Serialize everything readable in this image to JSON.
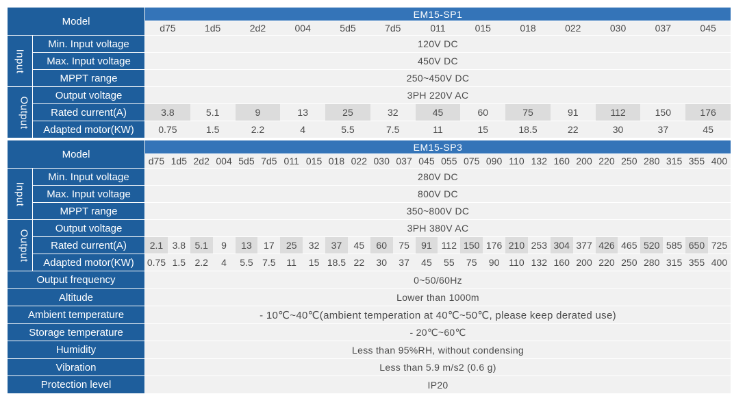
{
  "labels": {
    "model": "Model",
    "input_side": "Input",
    "output_side": "Output",
    "min_input_voltage": "Min. Input voltage",
    "max_input_voltage": "Max. Input voltage",
    "mppt_range": "MPPT range",
    "output_voltage": "Output voltage",
    "rated_current": "Rated current(A)",
    "adapted_motor": "Adapted motor(KW)"
  },
  "sp1": {
    "name": "EM15-SP1",
    "models": [
      "d75",
      "1d5",
      "2d2",
      "004",
      "5d5",
      "7d5",
      "011",
      "015",
      "018",
      "022",
      "030",
      "037",
      "045"
    ],
    "min_input_voltage": "120V DC",
    "max_input_voltage": "450V DC",
    "mppt_range": "250~450V DC",
    "output_voltage": "3PH 220V AC",
    "rated_current": [
      "3.8",
      "5.1",
      "9",
      "13",
      "25",
      "32",
      "45",
      "60",
      "75",
      "91",
      "112",
      "150",
      "176"
    ],
    "adapted_motor": [
      "0.75",
      "1.5",
      "2.2",
      "4",
      "5.5",
      "7.5",
      "11",
      "15",
      "18.5",
      "22",
      "30",
      "37",
      "45"
    ]
  },
  "sp3": {
    "name": "EM15-SP3",
    "models": [
      "d75",
      "1d5",
      "2d2",
      "004",
      "5d5",
      "7d5",
      "011",
      "015",
      "018",
      "022",
      "030",
      "037",
      "045",
      "055",
      "075",
      "090",
      "110",
      "132",
      "160",
      "200",
      "220",
      "250",
      "280",
      "315",
      "355",
      "400"
    ],
    "min_input_voltage": "280V DC",
    "max_input_voltage": "800V DC",
    "mppt_range": "350~800V DC",
    "output_voltage": "3PH 380V AC",
    "rated_current": [
      "2.1",
      "3.8",
      "5.1",
      "9",
      "13",
      "17",
      "25",
      "32",
      "37",
      "45",
      "60",
      "75",
      "91",
      "112",
      "150",
      "176",
      "210",
      "253",
      "304",
      "377",
      "426",
      "465",
      "520",
      "585",
      "650",
      "725"
    ],
    "adapted_motor": [
      "0.75",
      "1.5",
      "2.2",
      "4",
      "5.5",
      "7.5",
      "11",
      "15",
      "18.5",
      "22",
      "30",
      "37",
      "45",
      "55",
      "75",
      "90",
      "110",
      "132",
      "160",
      "200",
      "220",
      "250",
      "280",
      "315",
      "355",
      "400"
    ]
  },
  "common": [
    {
      "label": "Output frequency",
      "value": "0~50/60Hz"
    },
    {
      "label": "Altitude",
      "value": "Lower than 1000m"
    },
    {
      "label": "Ambient temperature",
      "value": "- 10℃~40℃(ambient temperation at 40℃~50℃,  please keep derated use)"
    },
    {
      "label": "Storage temperature",
      "value": "- 20℃~60℃"
    },
    {
      "label": "Humidity",
      "value": "Less than 95%RH, without condensing"
    },
    {
      "label": "Vibration",
      "value": "Less than 5.9 m/s2 (0.6 g)"
    },
    {
      "label": "Protection level",
      "value": "IP20"
    }
  ],
  "colors": {
    "label_bg": "#1e5e9c",
    "header_bg": "#3474b8",
    "cell_bg": "#f1f1f1",
    "shade_bg": "#dcdcdc",
    "text": "#4a4a4a"
  }
}
